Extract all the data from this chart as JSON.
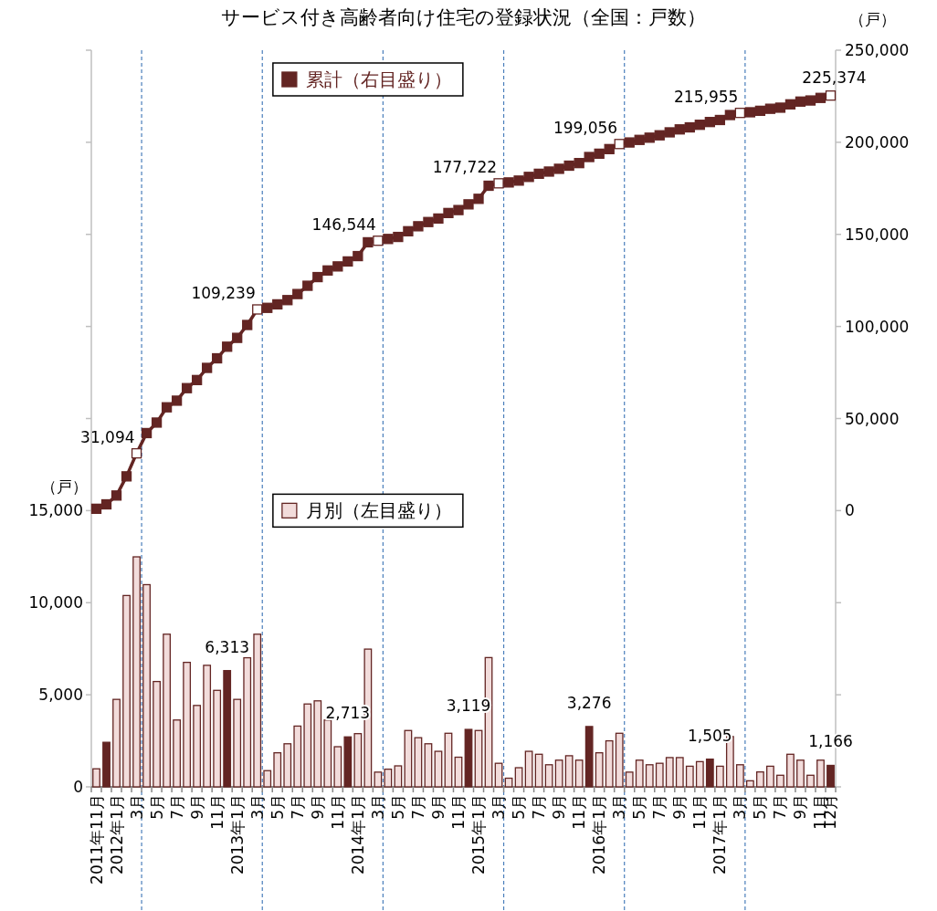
{
  "chart_data": {
    "type": "bar",
    "title": "サービス付き高齢者向け住宅の登録状況（全国：戸数）",
    "categories": [
      "2011年11月",
      null,
      "2012年1月",
      null,
      "3月",
      null,
      "5月",
      null,
      "7月",
      null,
      "9月",
      null,
      "11月",
      null,
      "2013年1月",
      null,
      "3月",
      null,
      "5月",
      null,
      "7月",
      null,
      "9月",
      null,
      "11月",
      null,
      "2014年1月",
      null,
      "3月",
      null,
      "5月",
      null,
      "7月",
      null,
      "9月",
      null,
      "11月",
      null,
      "2015年1月",
      null,
      "3月",
      null,
      "5月",
      null,
      "7月",
      null,
      "9月",
      null,
      "11月",
      null,
      "2016年1月",
      null,
      "3月",
      null,
      "5月",
      null,
      "7月",
      null,
      "9月",
      null,
      "11月",
      null,
      "2017年1月",
      null,
      "3月",
      null,
      "5月",
      null,
      "7月",
      null,
      "9月",
      null,
      "11月",
      "12月"
    ],
    "ylabel": "（戸）",
    "y2label": "（戸）",
    "legend": "top",
    "ylim": [
      0,
      40000
    ],
    "yticks": [
      0,
      {
        "value": 5000,
        "label": "5,000"
      },
      {
        "value": 10000,
        "label": "10,000"
      },
      {
        "value": 15000,
        "label": "15,000"
      },
      {
        "value": 20000,
        "label": null
      },
      {
        "value": 25000,
        "label": null
      },
      {
        "value": 30000,
        "label": null
      },
      {
        "value": 35000,
        "label": null
      },
      {
        "value": 40000,
        "label": null
      }
    ],
    "y2lim": [
      -150000,
      250000
    ],
    "y2ticks": [
      {
        "value": -150000,
        "label": null
      },
      {
        "value": -100000,
        "label": null
      },
      {
        "value": -50000,
        "label": null
      },
      0,
      {
        "value": 50000,
        "label": "50,000"
      },
      {
        "value": 100000,
        "label": "100,000"
      },
      {
        "value": 150000,
        "label": "150,000"
      },
      {
        "value": 200000,
        "label": "200,000"
      },
      {
        "value": 250000,
        "label": "250,000"
      }
    ],
    "series": [
      {
        "name": "月別（左目盛り）",
        "color": "#f2dcdb",
        "colors": [
          "#f2dcdb",
          "#632523",
          "#f2dcdb",
          "#f2dcdb",
          "#f2dcdb",
          "#f2dcdb",
          "#f2dcdb",
          "#f2dcdb",
          "#f2dcdb",
          "#f2dcdb",
          "#f2dcdb",
          "#f2dcdb",
          "#f2dcdb",
          "#632523",
          "#f2dcdb",
          "#f2dcdb",
          "#f2dcdb",
          "#f2dcdb",
          "#f2dcdb",
          "#f2dcdb",
          "#f2dcdb",
          "#f2dcdb",
          "#f2dcdb",
          "#f2dcdb",
          "#f2dcdb",
          "#632523",
          "#f2dcdb",
          "#f2dcdb",
          "#f2dcdb",
          "#f2dcdb",
          "#f2dcdb",
          "#f2dcdb",
          "#f2dcdb",
          "#f2dcdb",
          "#f2dcdb",
          "#f2dcdb",
          "#f2dcdb",
          "#632523",
          "#f2dcdb",
          "#f2dcdb",
          "#f2dcdb",
          "#f2dcdb",
          "#f2dcdb",
          "#f2dcdb",
          "#f2dcdb",
          "#f2dcdb",
          "#f2dcdb",
          "#f2dcdb",
          "#f2dcdb",
          "#632523",
          "#f2dcdb",
          "#f2dcdb",
          "#f2dcdb",
          "#f2dcdb",
          "#f2dcdb",
          "#f2dcdb",
          "#f2dcdb",
          "#f2dcdb",
          "#f2dcdb",
          "#f2dcdb",
          "#f2dcdb",
          "#632523",
          "#f2dcdb",
          "#f2dcdb",
          "#f2dcdb",
          "#f2dcdb",
          "#f2dcdb",
          "#f2dcdb",
          "#f2dcdb",
          "#f2dcdb",
          "#f2dcdb",
          "#f2dcdb",
          "#f2dcdb",
          "#632523"
        ],
        "values": [
          980,
          2420,
          4750,
          10390,
          12490,
          10980,
          5720,
          8290,
          3630,
          6760,
          4420,
          6600,
          5240,
          6313,
          4750,
          7010,
          8290,
          880,
          1850,
          2340,
          3300,
          4500,
          4670,
          3630,
          2180,
          2713,
          2890,
          7480,
          800,
          960,
          1140,
          3060,
          2670,
          2340,
          1930,
          2910,
          1610,
          3119,
          3060,
          7020,
          1280,
          470,
          1040,
          1930,
          1770,
          1200,
          1450,
          1690,
          1450,
          3276,
          1850,
          2500,
          2910,
          800,
          1450,
          1200,
          1280,
          1590,
          1590,
          1120,
          1370,
          1505,
          1120,
          2730,
          1200,
          330,
          810,
          1120,
          630,
          1770,
          1450,
          630,
          1450,
          1166
        ],
        "value_labels": [
          null,
          null,
          null,
          null,
          null,
          null,
          null,
          null,
          null,
          null,
          null,
          null,
          null,
          "6,313",
          null,
          null,
          null,
          null,
          null,
          null,
          null,
          null,
          null,
          null,
          null,
          "2,713",
          null,
          null,
          null,
          null,
          null,
          null,
          null,
          null,
          null,
          null,
          null,
          "3,119",
          null,
          null,
          null,
          null,
          null,
          null,
          null,
          null,
          null,
          null,
          null,
          "3,276",
          null,
          null,
          null,
          null,
          null,
          null,
          null,
          null,
          null,
          null,
          null,
          "1,505",
          null,
          null,
          null,
          null,
          null,
          null,
          null,
          null,
          null,
          null,
          null,
          "1,166"
        ]
      },
      {
        "name": "累計（右目盛り）",
        "type": "line",
        "axis": "y2",
        "color": "#632523",
        "marker": "square",
        "line_style": "solid",
        "colors": [
          "#632523",
          "#632523",
          "#632523",
          "#632523",
          "#ffffff",
          "#632523",
          "#632523",
          "#632523",
          "#632523",
          "#632523",
          "#632523",
          "#632523",
          "#632523",
          "#632523",
          "#632523",
          "#632523",
          "#ffffff",
          "#632523",
          "#632523",
          "#632523",
          "#632523",
          "#632523",
          "#632523",
          "#632523",
          "#632523",
          "#632523",
          "#632523",
          "#632523",
          "#ffffff",
          "#632523",
          "#632523",
          "#632523",
          "#632523",
          "#632523",
          "#632523",
          "#632523",
          "#632523",
          "#632523",
          "#632523",
          "#632523",
          "#ffffff",
          "#632523",
          "#632523",
          "#632523",
          "#632523",
          "#632523",
          "#632523",
          "#632523",
          "#632523",
          "#632523",
          "#632523",
          "#632523",
          "#ffffff",
          "#632523",
          "#632523",
          "#632523",
          "#632523",
          "#632523",
          "#632523",
          "#632523",
          "#632523",
          "#632523",
          "#632523",
          "#632523",
          "#ffffff",
          "#632523",
          "#632523",
          "#632523",
          "#632523",
          "#632523",
          "#632523",
          "#632523",
          "#632523",
          "#ffffff"
        ],
        "values": [
          1000,
          3400,
          8200,
          18600,
          31094,
          42100,
          47800,
          56100,
          59700,
          66500,
          70900,
          77500,
          82700,
          89000,
          93800,
          100800,
          109239,
          110100,
          112000,
          114300,
          117600,
          122100,
          126800,
          130400,
          132600,
          135300,
          138200,
          145700,
          146544,
          147500,
          148600,
          151700,
          154400,
          156700,
          158600,
          161600,
          163200,
          166300,
          169300,
          176400,
          177722,
          178200,
          179200,
          181200,
          182900,
          184100,
          185600,
          187300,
          188700,
          192000,
          193800,
          196300,
          199056,
          199900,
          201300,
          202500,
          203800,
          205400,
          207000,
          208100,
          209500,
          211000,
          212100,
          214800,
          215955,
          216300,
          217100,
          218200,
          218800,
          220600,
          222100,
          222700,
          224100,
          225374
        ],
        "value_labels": [
          null,
          null,
          null,
          null,
          "31,094",
          null,
          null,
          null,
          null,
          null,
          null,
          null,
          null,
          null,
          null,
          null,
          "109,239",
          null,
          null,
          null,
          null,
          null,
          null,
          null,
          null,
          null,
          null,
          null,
          "146,544",
          null,
          null,
          null,
          null,
          null,
          null,
          null,
          null,
          null,
          null,
          null,
          "177,722",
          null,
          null,
          null,
          null,
          null,
          null,
          null,
          null,
          null,
          null,
          null,
          "199,056",
          null,
          null,
          null,
          null,
          null,
          null,
          null,
          null,
          null,
          null,
          null,
          "215,955",
          null,
          null,
          null,
          null,
          null,
          null,
          null,
          null,
          "225,374"
        ]
      }
    ]
  }
}
